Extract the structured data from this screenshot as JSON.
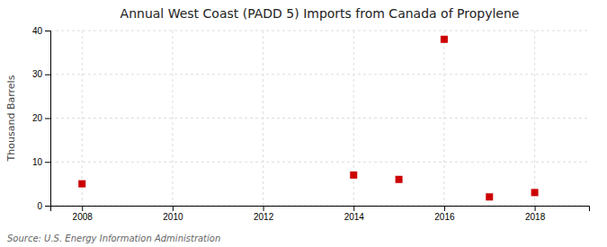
{
  "chart_data": {
    "type": "scatter",
    "title": "Annual West Coast (PADD 5) Imports from Canada of Propylene",
    "ylabel": "Thousand Barrels",
    "annotations": [
      "Source: U.S. Energy Information Administration"
    ],
    "x": [
      2008,
      2014,
      2015,
      2016,
      2017,
      2018
    ],
    "values": [
      5,
      7,
      6,
      38,
      2,
      3
    ],
    "color": "#cc0000",
    "marker": "square",
    "xlim": [
      2007.3,
      2019.2
    ],
    "ylim": [
      0,
      40
    ],
    "xticks": [
      2008,
      2010,
      2012,
      2014,
      2016,
      2018
    ],
    "yticks": [
      0,
      10,
      20,
      30,
      40
    ],
    "grid": true
  }
}
